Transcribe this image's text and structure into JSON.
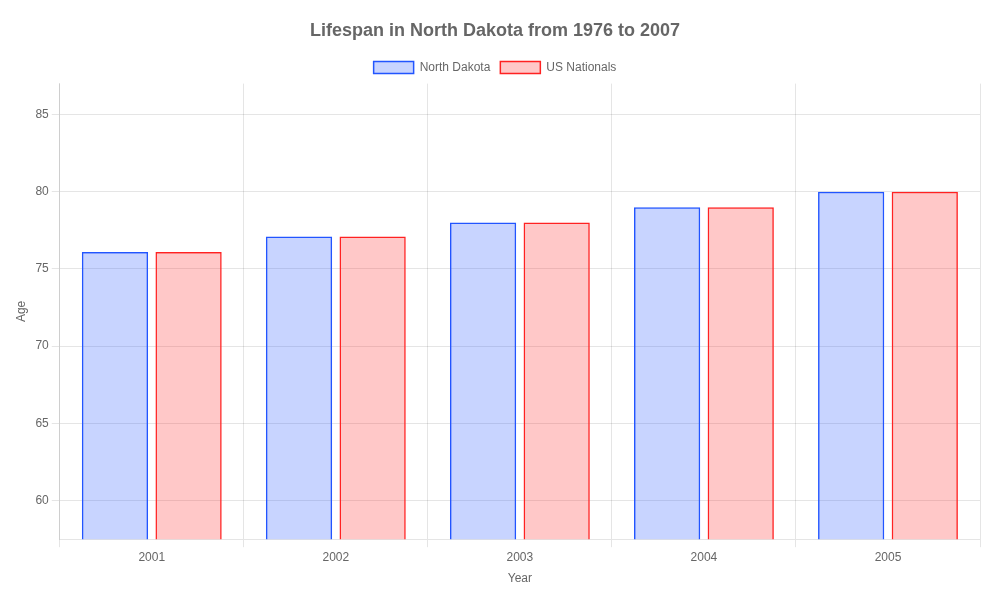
{
  "chart_data": {
    "type": "bar",
    "title": "Lifespan in North Dakota from 1976 to 2007",
    "x_label": "Year",
    "y_label": "Age",
    "categories": [
      "2001",
      "2002",
      "2003",
      "2004",
      "2005"
    ],
    "series": [
      {
        "name": "North Dakota",
        "color": "#2255ff",
        "values": [
          76.1,
          77.1,
          78.0,
          79.0,
          80.0
        ]
      },
      {
        "name": "US Nationals",
        "color": "#ff2222",
        "values": [
          76.1,
          77.1,
          78.0,
          79.0,
          80.0
        ]
      }
    ],
    "ylim": [
      57.5,
      87
    ],
    "yticks": [
      60,
      65,
      70,
      75,
      80,
      85
    ],
    "grid": true,
    "legend": "top"
  }
}
